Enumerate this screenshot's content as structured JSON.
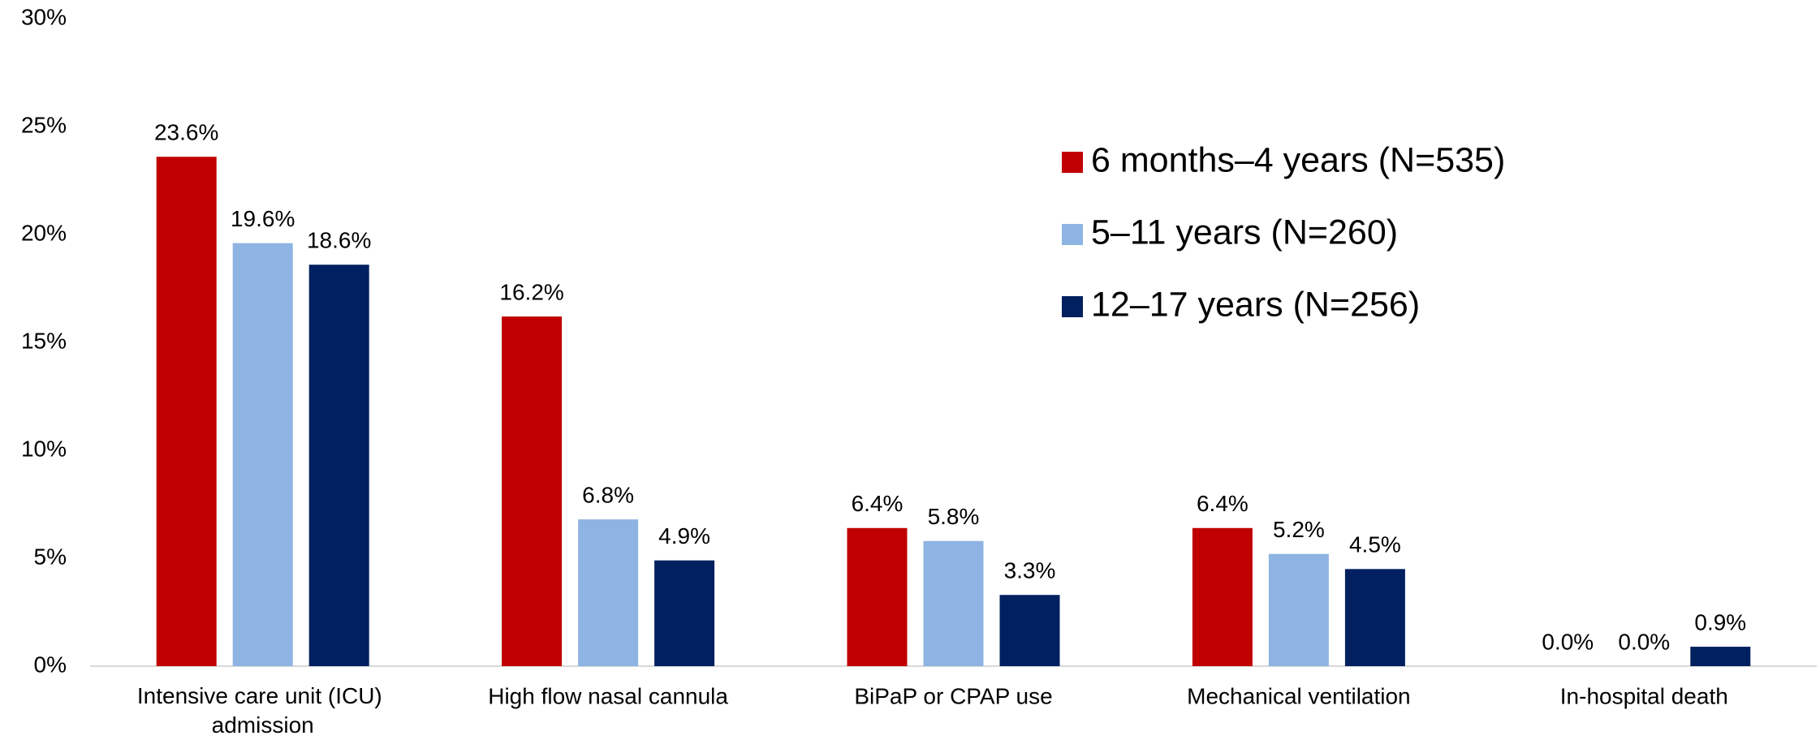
{
  "chart_data": {
    "type": "bar",
    "categories": [
      "Intensive care unit (ICU) admission",
      "High flow nasal cannula",
      "BiPaP or CPAP use",
      "Mechanical ventilation",
      "In-hospital death"
    ],
    "series": [
      {
        "name": "6 months–4 years (N=535)",
        "color": "#c00000",
        "values": [
          23.6,
          16.2,
          6.4,
          6.4,
          0.0
        ],
        "value_labels": [
          "23.6%",
          "16.2%",
          "6.4%",
          "6.4%",
          "0.0%"
        ]
      },
      {
        "name": "5–11 years (N=260)",
        "color": "#8eb4e3",
        "values": [
          19.6,
          6.8,
          5.8,
          5.2,
          0.0
        ],
        "value_labels": [
          "19.6%",
          "6.8%",
          "5.8%",
          "5.2%",
          "0.0%"
        ]
      },
      {
        "name": "12–17 years (N=256)",
        "color": "#002060",
        "values": [
          18.6,
          4.9,
          3.3,
          4.5,
          0.9
        ],
        "value_labels": [
          "18.6%",
          "4.9%",
          "3.3%",
          "4.5%",
          "0.9%"
        ]
      }
    ],
    "ylim": [
      0,
      30
    ],
    "yticks": [
      {
        "value": 0,
        "label": "0%"
      },
      {
        "value": 5,
        "label": "5%"
      },
      {
        "value": 10,
        "label": "10%"
      },
      {
        "value": 15,
        "label": "15%"
      },
      {
        "value": 20,
        "label": "20%"
      },
      {
        "value": 25,
        "label": "25%"
      },
      {
        "value": 30,
        "label": "30%"
      }
    ],
    "grid": false,
    "legend": "upper right"
  }
}
